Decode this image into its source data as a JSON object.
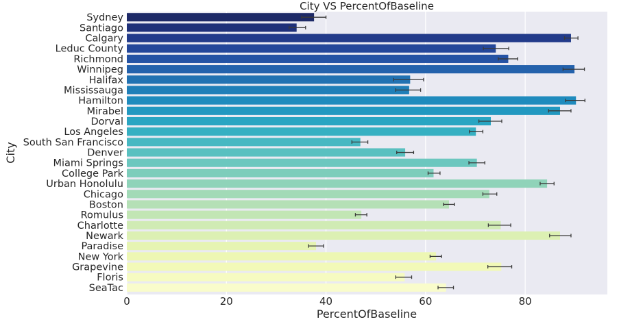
{
  "chart_data": {
    "type": "bar",
    "orientation": "horizontal",
    "title": "City VS PercentOfBaseline",
    "xlabel": "PercentOfBaseline",
    "ylabel": "City",
    "xlim": [
      0,
      96.5
    ],
    "xticks": [
      0,
      20,
      40,
      60,
      80
    ],
    "grid": true,
    "categories": [
      "Sydney",
      "Santiago",
      "Calgary",
      "Leduc County",
      "Richmond",
      "Winnipeg",
      "Halifax",
      "Mississauga",
      "Hamilton",
      "Mirabel",
      "Dorval",
      "Los Angeles",
      "South San Francisco",
      "Denver",
      "Miami Springs",
      "College Park",
      "Urban Honolulu",
      "Chicago",
      "Boston",
      "Romulus",
      "Charlotte",
      "Newark",
      "Paradise",
      "New York",
      "Grapevine",
      "Floris",
      "SeaTac"
    ],
    "values": [
      37.6,
      34.1,
      89.2,
      74.1,
      76.6,
      89.9,
      56.9,
      56.7,
      90.2,
      87.0,
      73.1,
      70.1,
      46.9,
      55.9,
      70.3,
      61.6,
      84.4,
      72.8,
      64.7,
      47.1,
      75.1,
      87.0,
      38.0,
      62.1,
      75.2,
      55.8,
      64.1
    ],
    "errors": [
      [
        35.1,
        40.0
      ],
      [
        32.6,
        35.9
      ],
      [
        87.9,
        90.6
      ],
      [
        71.6,
        76.7
      ],
      [
        74.6,
        78.5
      ],
      [
        87.6,
        91.9
      ],
      [
        53.6,
        59.6
      ],
      [
        54.0,
        59.0
      ],
      [
        88.1,
        92.0
      ],
      [
        84.7,
        89.2
      ],
      [
        70.7,
        75.3
      ],
      [
        68.8,
        71.5
      ],
      [
        45.2,
        48.4
      ],
      [
        54.2,
        57.6
      ],
      [
        68.7,
        71.9
      ],
      [
        60.5,
        62.9
      ],
      [
        83.0,
        85.8
      ],
      [
        71.5,
        74.3
      ],
      [
        63.6,
        65.8
      ],
      [
        45.9,
        48.2
      ],
      [
        72.6,
        77.1
      ],
      [
        84.9,
        89.2
      ],
      [
        36.5,
        39.5
      ],
      [
        60.9,
        63.2
      ],
      [
        72.5,
        77.3
      ],
      [
        54.0,
        57.2
      ],
      [
        62.5,
        65.6
      ]
    ],
    "colors": [
      "#1d2967",
      "#1e3079",
      "#223b8a",
      "#24479a",
      "#2553a4",
      "#2462ac",
      "#2272b2",
      "#207fb8",
      "#1f8bbd",
      "#2298c0",
      "#29a5c2",
      "#36b0c2",
      "#47b8c2",
      "#59c0c0",
      "#6cc7bf",
      "#7dcdbb",
      "#8fd3b9",
      "#a2dab7",
      "#b5e0b6",
      "#c2e6b4",
      "#d0ebb4",
      "#dcf0b3",
      "#e6f4b2",
      "#edf7b3",
      "#f2f9b8",
      "#f6fbc1",
      "#f9fccb"
    ]
  }
}
